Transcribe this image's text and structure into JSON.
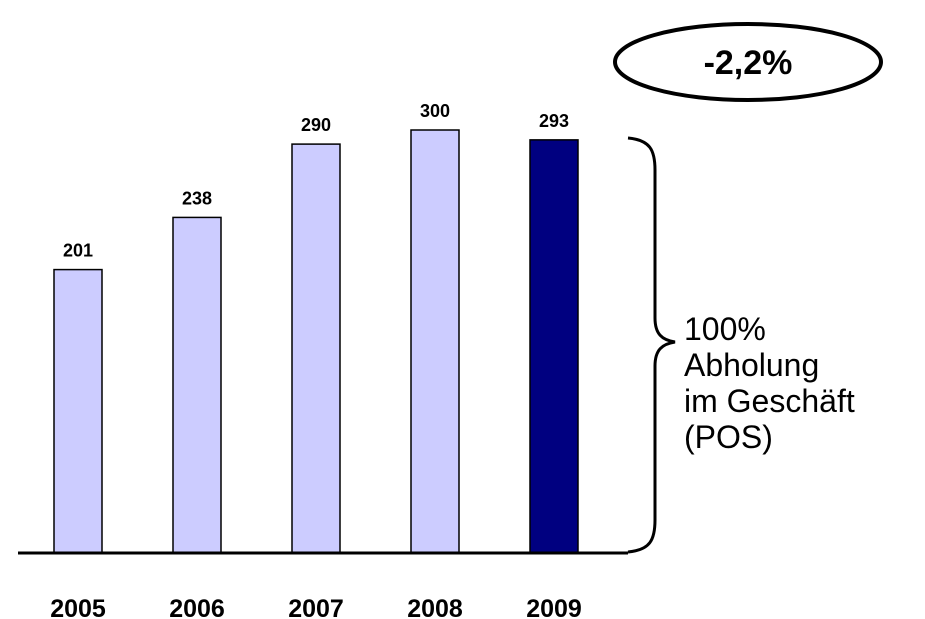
{
  "chart_data": {
    "type": "bar",
    "categories": [
      "2005",
      "2006",
      "2007",
      "2008",
      "2009"
    ],
    "values": [
      201,
      238,
      290,
      300,
      293
    ],
    "data_labels": [
      "201",
      "238",
      "290",
      "300",
      "293"
    ],
    "highlight_index": 4,
    "ylim": [
      0,
      300
    ],
    "grid": false,
    "title": "",
    "xlabel": "",
    "ylabel": "",
    "colors": {
      "bar": "#ccccff",
      "bar_highlight": "#000080",
      "bar_stroke": "#000000",
      "axis": "#000000"
    }
  },
  "badge": {
    "text": "-2,2%"
  },
  "brace_label": {
    "lines": [
      "100%",
      "Abholung",
      "im Geschäft",
      "(POS)"
    ]
  }
}
